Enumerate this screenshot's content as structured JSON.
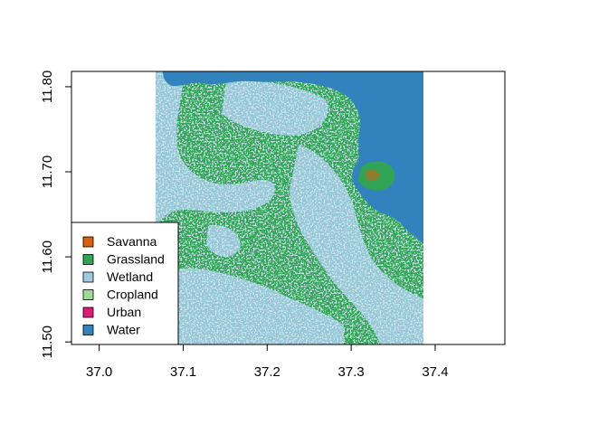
{
  "map": {
    "x_ticks": [
      "37.0",
      "37.1",
      "37.2",
      "37.3",
      "37.4"
    ],
    "y_ticks": [
      "11.50",
      "11.60",
      "11.70",
      "11.80"
    ],
    "x_tick_values": [
      37.0,
      37.1,
      37.2,
      37.3,
      37.4
    ],
    "y_tick_values": [
      11.5,
      11.6,
      11.7,
      11.8
    ],
    "x_range": [
      36.967,
      37.483
    ],
    "y_range": [
      11.497,
      11.818
    ],
    "raster_extent": {
      "x": [
        37.069,
        37.392
      ],
      "y": [
        11.497,
        11.818
      ]
    }
  },
  "legend": {
    "position": "bottom-left",
    "items": [
      {
        "label": "Savanna",
        "color": "#d95f0e"
      },
      {
        "label": "Grassland",
        "color": "#31a354"
      },
      {
        "label": "Wetland",
        "color": "#9ecae1"
      },
      {
        "label": "Cropland",
        "color": "#a1d99b"
      },
      {
        "label": "Urban",
        "color": "#dd1c77"
      },
      {
        "label": "Water",
        "color": "#3182bd"
      }
    ]
  }
}
